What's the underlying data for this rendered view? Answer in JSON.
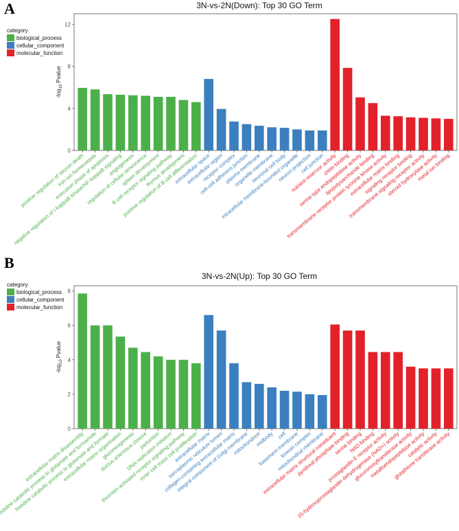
{
  "colors": {
    "biological_process": "#4cb04a",
    "cellular_component": "#3b7fbf",
    "molecular_function": "#e2212a"
  },
  "legend": {
    "title": "category",
    "items": [
      {
        "label": "biological_process",
        "key": "biological_process"
      },
      {
        "label": "cellular_component",
        "key": "cellular_component"
      },
      {
        "label": "molecular_function",
        "key": "molecular_function"
      }
    ]
  },
  "chart_data": [
    {
      "panel_letter": "A",
      "type": "bar",
      "title": "3N-vs-2N(Down): Top 30 GO Term",
      "ylabel_prefix": "-log",
      "ylabel_sub": "10",
      "ylabel_suffix": " Pvalue",
      "ylim": [
        0,
        13
      ],
      "yticks": [
        0,
        4,
        8,
        12
      ],
      "grid": false,
      "legend_position": "left",
      "categories": [
        "positive regulation of neuron death",
        "iron ion homeostasis",
        "execution phase of apoptosis",
        "negative regulation of I-kappaB kinase/NF-kappaB signaling",
        "angiogenesis",
        "regulation of cellular senescence",
        "spleen development",
        "B cell receptor signaling pathway",
        "thymus development",
        "positive regulation of B cell differentiation",
        "extracellular space",
        "extracellular region",
        "receptor complex",
        "cell-cell adherens junction",
        "plasma membrane",
        "organelle membrane",
        "neuronal cell body",
        "intracellular membrane-bounded organelle",
        "neuron projection",
        "cell junction",
        "nutrient reservoir activity",
        "chitin binding",
        "serine-type endopeptidase activity",
        "lipopolysaccharide binding",
        "transmembrane receptor protein tyrosine kinase activity",
        "extracellular matrix binding",
        "signaling receptor binding",
        "transmembrane signaling receptor activity",
        "steroid hydroxylase activity",
        "metal ion binding"
      ],
      "values": [
        5.95,
        5.8,
        5.35,
        5.3,
        5.25,
        5.2,
        5.1,
        5.1,
        4.8,
        4.6,
        6.8,
        3.95,
        2.75,
        2.5,
        2.35,
        2.2,
        2.15,
        2.0,
        1.9,
        1.9,
        12.5,
        7.85,
        5.05,
        4.5,
        3.3,
        3.25,
        3.15,
        3.1,
        3.05,
        3.0
      ],
      "groups": [
        "biological_process",
        "biological_process",
        "biological_process",
        "biological_process",
        "biological_process",
        "biological_process",
        "biological_process",
        "biological_process",
        "biological_process",
        "biological_process",
        "cellular_component",
        "cellular_component",
        "cellular_component",
        "cellular_component",
        "cellular_component",
        "cellular_component",
        "cellular_component",
        "cellular_component",
        "cellular_component",
        "cellular_component",
        "molecular_function",
        "molecular_function",
        "molecular_function",
        "molecular_function",
        "molecular_function",
        "molecular_function",
        "molecular_function",
        "molecular_function",
        "molecular_function",
        "molecular_function"
      ]
    },
    {
      "panel_letter": "B",
      "type": "bar",
      "title": "3N-vs-2N(Up): Top 30 GO Term",
      "ylabel_prefix": "-log",
      "ylabel_sub": "10",
      "ylabel_suffix": " Pvalue",
      "ylim": [
        0,
        8.3
      ],
      "yticks": [
        0,
        2,
        4,
        6,
        8
      ],
      "grid": false,
      "legend_position": "left",
      "categories": [
        "extracellular matrix disassembly",
        "histidine catabolic process to glutamate and formamide",
        "histidine catabolic process to glutamate and formate",
        "extracellular matrix organization",
        "gluconeogenesis",
        "ductus arteriosus closure",
        "parturition",
        "DNA replication initiation",
        "thrombin-activated receptor signaling pathway",
        "inner cell mass cell proliferation",
        "extracellular matrix",
        "sarcoplasmic reticulum lumen",
        "collagen-containing extracellular matrix",
        "integral component of Golgi membrane",
        "mitochondrion",
        "midbody",
        "cell",
        "basement membrane",
        "kinesin complex",
        "mitochondrial membrane",
        "extracellular matrix structural constituent",
        "pyridoxal phosphate binding",
        "serine binding",
        "NAD binding",
        "prostaglandin E receptor activity",
        "15-hydroxyprostaglandin dehydrogenase (NAD+) activity",
        "glucuronosyltransferase activity",
        "metalloendopeptidase activity",
        "catalytic activity",
        "glutathione transferase activity"
      ],
      "values": [
        7.85,
        6.0,
        6.0,
        5.35,
        4.7,
        4.45,
        4.2,
        4.0,
        4.0,
        3.8,
        6.6,
        5.7,
        3.8,
        2.7,
        2.6,
        2.4,
        2.2,
        2.15,
        2.0,
        1.95,
        6.05,
        5.7,
        5.7,
        4.45,
        4.45,
        4.45,
        3.6,
        3.5,
        3.5,
        3.5
      ],
      "groups": [
        "biological_process",
        "biological_process",
        "biological_process",
        "biological_process",
        "biological_process",
        "biological_process",
        "biological_process",
        "biological_process",
        "biological_process",
        "biological_process",
        "cellular_component",
        "cellular_component",
        "cellular_component",
        "cellular_component",
        "cellular_component",
        "cellular_component",
        "cellular_component",
        "cellular_component",
        "cellular_component",
        "cellular_component",
        "molecular_function",
        "molecular_function",
        "molecular_function",
        "molecular_function",
        "molecular_function",
        "molecular_function",
        "molecular_function",
        "molecular_function",
        "molecular_function",
        "molecular_function"
      ]
    }
  ]
}
